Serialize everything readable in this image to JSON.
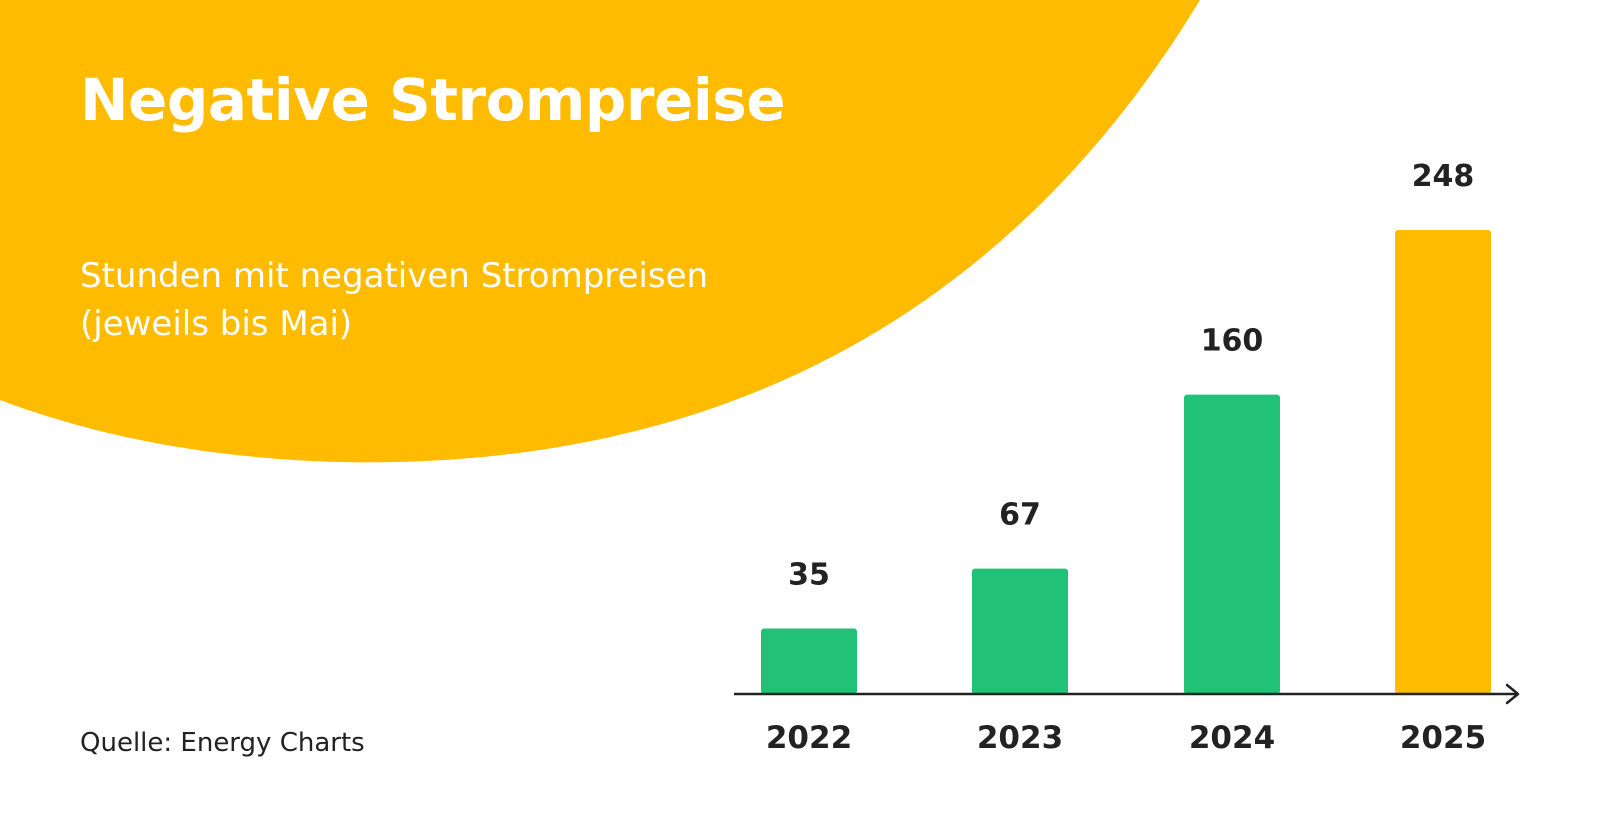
{
  "slide": {
    "title": "Negative Strompreise",
    "subtitle_lines": [
      "Stunden mit negativen Strompreisen",
      "(jeweils bis Mai)"
    ],
    "source": "Quelle: Energy Charts"
  },
  "colors": {
    "accent_yellow": "#FFBB00",
    "bar_green": "#22C178",
    "bar_highlight": "#FFBB00",
    "text_dark": "#222222"
  },
  "chart_data": {
    "type": "bar",
    "categories": [
      "2022",
      "2023",
      "2024",
      "2025"
    ],
    "values": [
      35,
      67,
      160,
      248
    ],
    "data_labels": [
      "35",
      "67",
      "160",
      "248"
    ],
    "bar_colors": [
      "#22C178",
      "#22C178",
      "#22C178",
      "#FFBB00"
    ],
    "title": "",
    "xlabel": "",
    "ylabel": "",
    "ylim": [
      0,
      248
    ],
    "grid": false,
    "legend": "none",
    "x_axis_arrow": true
  }
}
